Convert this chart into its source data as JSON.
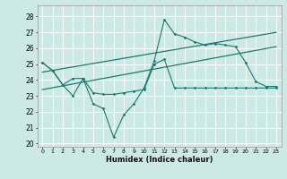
{
  "xlabel": "Humidex (Indice chaleur)",
  "xlim": [
    -0.5,
    23.5
  ],
  "ylim": [
    19.8,
    28.7
  ],
  "yticks": [
    20,
    21,
    22,
    23,
    24,
    25,
    26,
    27,
    28
  ],
  "xticks": [
    0,
    1,
    2,
    3,
    4,
    5,
    6,
    7,
    8,
    9,
    10,
    11,
    12,
    13,
    14,
    15,
    16,
    17,
    18,
    19,
    20,
    21,
    22,
    23
  ],
  "bg_color": "#cce9e5",
  "grid_color": "#ffffff",
  "line_color": "#1a7a6e",
  "series1_y": [
    25.1,
    24.6,
    23.7,
    23.0,
    24.1,
    22.5,
    22.2,
    20.4,
    21.8,
    22.5,
    23.5,
    25.2,
    27.8,
    26.9,
    26.7,
    26.4,
    26.2,
    26.3,
    26.2,
    26.1,
    25.1,
    23.9,
    23.6,
    23.6
  ],
  "series2_y": [
    25.1,
    24.6,
    23.7,
    24.1,
    24.1,
    23.2,
    23.1,
    23.1,
    23.2,
    23.3,
    23.4,
    25.0,
    25.3,
    23.5,
    23.5,
    23.5,
    23.5,
    23.5,
    23.5,
    23.5,
    23.5,
    23.5,
    23.5,
    23.5
  ],
  "trend1_x": [
    0,
    23
  ],
  "trend1_y": [
    23.4,
    26.1
  ],
  "trend2_x": [
    0,
    23
  ],
  "trend2_y": [
    24.5,
    27.0
  ]
}
